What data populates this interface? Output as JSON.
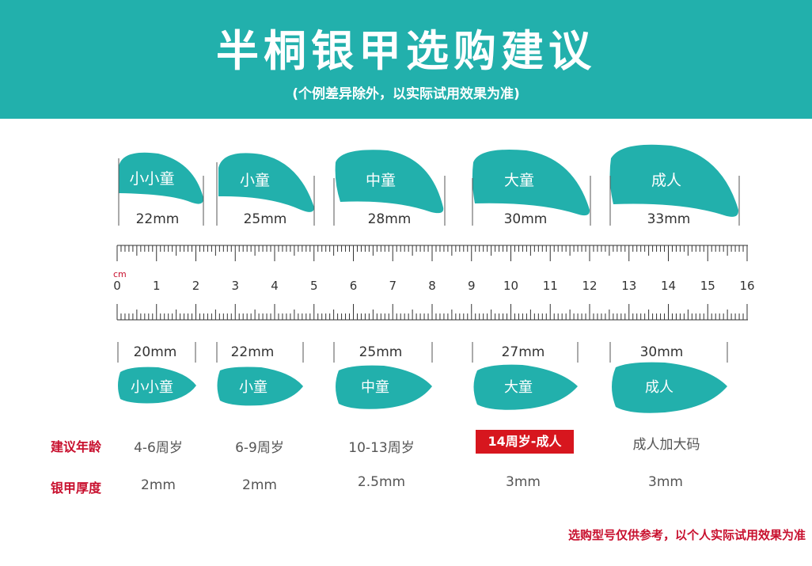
{
  "header": {
    "title": "半桐银甲选购建议",
    "subtitle": "(个例差异除外，以实际试用效果为准)"
  },
  "ruler": {
    "unit": "cm",
    "numbers": [
      "0",
      "1",
      "2",
      "3",
      "4",
      "5",
      "6",
      "7",
      "8",
      "9",
      "10",
      "11",
      "12",
      "13",
      "14",
      "15",
      "16"
    ]
  },
  "colors": {
    "teal": "#22b0ac",
    "red": "#c8102e",
    "highlight": "#d7161e"
  },
  "top_shields": [
    {
      "label": "小小童",
      "size": "22mm"
    },
    {
      "label": "小童",
      "size": "25mm"
    },
    {
      "label": "中童",
      "size": "28mm"
    },
    {
      "label": "大童",
      "size": "30mm"
    },
    {
      "label": "成人",
      "size": "33mm"
    }
  ],
  "bottom_shields": [
    {
      "label": "小小童",
      "size": "20mm"
    },
    {
      "label": "小童",
      "size": "22mm"
    },
    {
      "label": "中童",
      "size": "25mm"
    },
    {
      "label": "大童",
      "size": "27mm"
    },
    {
      "label": "成人",
      "size": "30mm"
    }
  ],
  "rows": {
    "age_label": "建议年龄",
    "ages": [
      "4-6周岁",
      "6-9周岁",
      "10-13周岁",
      "14周岁-成人",
      "成人加大码"
    ],
    "thickness_label": "银甲厚度",
    "thickness": [
      "2mm",
      "2mm",
      "2.5mm",
      "3mm",
      "3mm"
    ]
  },
  "footnote": "选购型号仅供参考，以个人实际试用效果为准"
}
